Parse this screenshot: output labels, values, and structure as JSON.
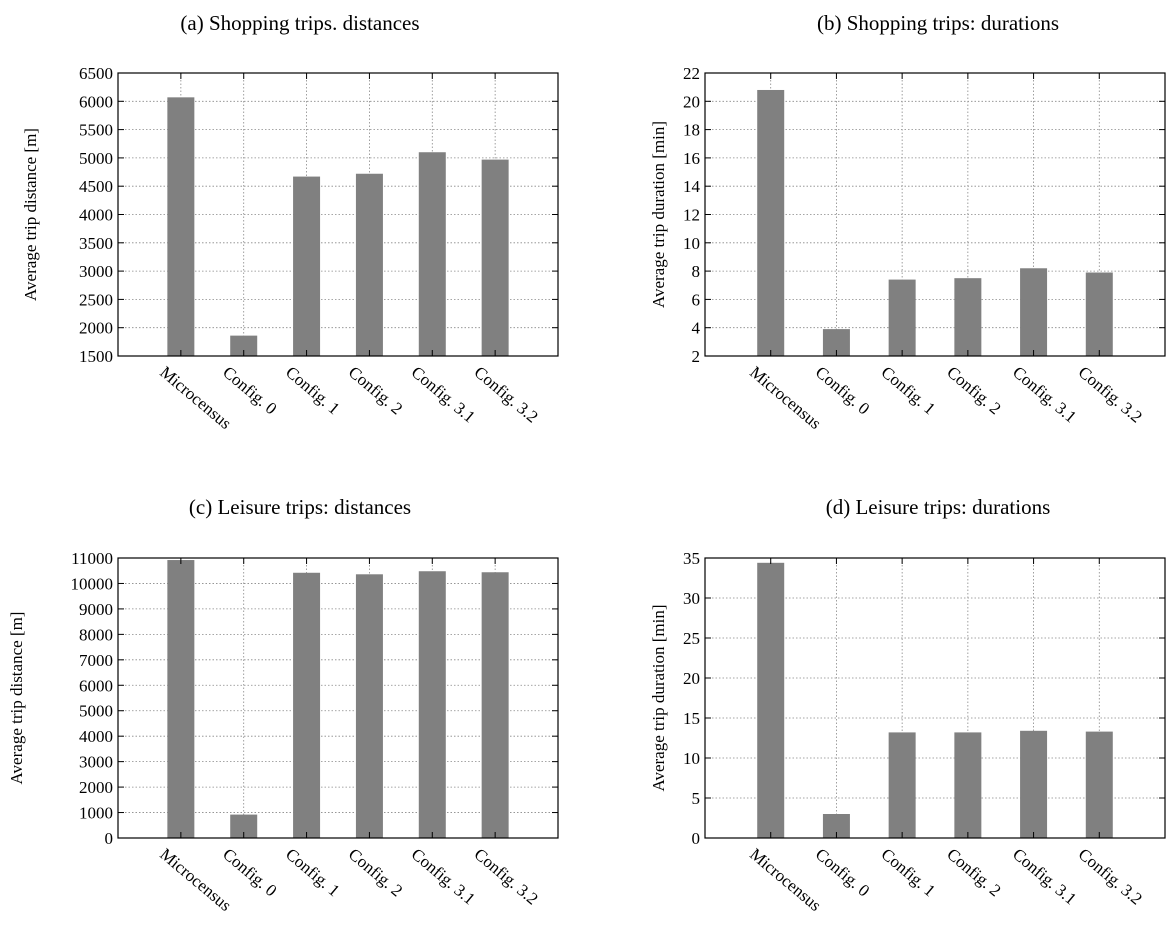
{
  "colors": {
    "bar": "#808080",
    "grid": "#888888",
    "axis": "#000000",
    "background": "#ffffff"
  },
  "chart_data": [
    {
      "type": "bar",
      "title": "(a)  Shopping trips. distances",
      "xlabel": "",
      "ylabel": "Average trip distance [m]",
      "categories": [
        "Microcensus",
        "Config. 0",
        "Config. 1",
        "Config. 2",
        "Config. 3.1",
        "Config. 3.2"
      ],
      "values": [
        6070,
        1860,
        4670,
        4720,
        5100,
        4970
      ],
      "ylim": [
        1500,
        6500
      ],
      "yticks": [
        1500,
        2000,
        2500,
        3000,
        3500,
        4000,
        4500,
        5000,
        5500,
        6000,
        6500
      ],
      "grid": true,
      "legend": "none"
    },
    {
      "type": "bar",
      "title": "(b)  Shopping trips: durations",
      "xlabel": "",
      "ylabel": "Average trip duration [min]",
      "categories": [
        "Microcensus",
        "Config. 0",
        "Config. 1",
        "Config. 2",
        "Config. 3.1",
        "Config. 3.2"
      ],
      "values": [
        20.8,
        3.9,
        7.4,
        7.5,
        8.2,
        7.9
      ],
      "ylim": [
        2,
        22
      ],
      "yticks": [
        2,
        4,
        6,
        8,
        10,
        12,
        14,
        16,
        18,
        20,
        22
      ],
      "grid": true,
      "legend": "none"
    },
    {
      "type": "bar",
      "title": "(c)  Leisure trips: distances",
      "xlabel": "",
      "ylabel": "Average trip distance [m]",
      "categories": [
        "Microcensus",
        "Config. 0",
        "Config. 1",
        "Config. 2",
        "Config. 3.1",
        "Config. 3.2"
      ],
      "values": [
        10920,
        920,
        10420,
        10360,
        10480,
        10440
      ],
      "ylim": [
        0,
        11000
      ],
      "yticks": [
        0,
        1000,
        2000,
        3000,
        4000,
        5000,
        6000,
        7000,
        8000,
        9000,
        10000,
        11000
      ],
      "grid": true,
      "legend": "none"
    },
    {
      "type": "bar",
      "title": "(d)  Leisure trips: durations",
      "xlabel": "",
      "ylabel": "Average trip duration [min]",
      "categories": [
        "Microcensus",
        "Config. 0",
        "Config. 1",
        "Config. 2",
        "Config. 3.1",
        "Config. 3.2"
      ],
      "values": [
        34.4,
        3.0,
        13.2,
        13.2,
        13.4,
        13.3
      ],
      "ylim": [
        0,
        35
      ],
      "yticks": [
        0,
        5,
        10,
        15,
        20,
        25,
        30,
        35
      ],
      "grid": true,
      "legend": "none"
    }
  ]
}
